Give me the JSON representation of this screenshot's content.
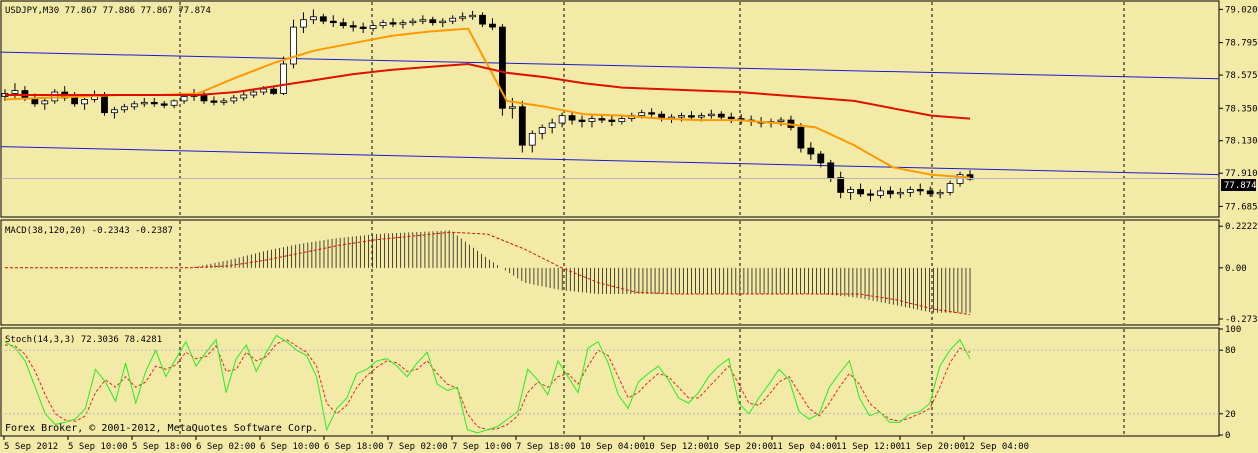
{
  "chart_data": [
    {
      "panel": "main",
      "type": "candlestick",
      "title": "USDJPY,M30  77.867 77.886 77.867 77.874",
      "price_levels": [
        "79.020",
        "78.795",
        "78.575",
        "78.350",
        "78.130",
        "77.910",
        "77.685"
      ],
      "ylim": [
        77.62,
        79.07
      ],
      "current_price_label": "77.874",
      "ohlc": [
        [
          78.43,
          78.48,
          78.4,
          78.45
        ],
        [
          78.45,
          78.52,
          78.42,
          78.47
        ],
        [
          78.47,
          78.5,
          78.4,
          78.42
        ],
        [
          78.42,
          78.45,
          78.36,
          78.38
        ],
        [
          78.38,
          78.42,
          78.34,
          78.4
        ],
        [
          78.4,
          78.48,
          78.38,
          78.46
        ],
        [
          78.46,
          78.5,
          78.4,
          78.42
        ],
        [
          78.42,
          78.46,
          78.36,
          78.38
        ],
        [
          78.38,
          78.42,
          78.34,
          78.41
        ],
        [
          78.41,
          78.47,
          78.39,
          78.44
        ],
        [
          78.44,
          78.46,
          78.3,
          78.32
        ],
        [
          78.32,
          78.36,
          78.28,
          78.34
        ],
        [
          78.34,
          78.38,
          78.32,
          78.36
        ],
        [
          78.36,
          78.4,
          78.34,
          78.38
        ],
        [
          78.38,
          78.42,
          78.36,
          78.39
        ],
        [
          78.39,
          78.42,
          78.36,
          78.38
        ],
        [
          78.38,
          78.4,
          78.35,
          78.37
        ],
        [
          78.37,
          78.41,
          78.35,
          78.4
        ],
        [
          78.4,
          78.45,
          78.38,
          78.43
        ],
        [
          78.43,
          78.48,
          78.4,
          78.44
        ],
        [
          78.44,
          78.47,
          78.38,
          78.4
        ],
        [
          78.4,
          78.43,
          78.37,
          78.39
        ],
        [
          78.39,
          78.42,
          78.37,
          78.4
        ],
        [
          78.4,
          78.44,
          78.38,
          78.42
        ],
        [
          78.42,
          78.46,
          78.4,
          78.44
        ],
        [
          78.44,
          78.48,
          78.42,
          78.46
        ],
        [
          78.46,
          78.5,
          78.44,
          78.48
        ],
        [
          78.48,
          78.5,
          78.44,
          78.45
        ],
        [
          78.45,
          78.7,
          78.44,
          78.65
        ],
        [
          78.65,
          78.95,
          78.62,
          78.9
        ],
        [
          78.9,
          79.0,
          78.86,
          78.95
        ],
        [
          78.95,
          79.02,
          78.92,
          78.97
        ],
        [
          78.97,
          78.99,
          78.92,
          78.94
        ],
        [
          78.94,
          78.98,
          78.9,
          78.93
        ],
        [
          78.93,
          78.96,
          78.89,
          78.91
        ],
        [
          78.91,
          78.94,
          78.87,
          78.9
        ],
        [
          78.9,
          78.93,
          78.86,
          78.89
        ],
        [
          78.89,
          78.93,
          78.87,
          78.91
        ],
        [
          78.91,
          78.95,
          78.89,
          78.93
        ],
        [
          78.93,
          78.96,
          78.9,
          78.92
        ],
        [
          78.92,
          78.95,
          78.89,
          78.93
        ],
        [
          78.93,
          78.96,
          78.91,
          78.94
        ],
        [
          78.94,
          78.98,
          78.92,
          78.95
        ],
        [
          78.95,
          78.97,
          78.91,
          78.93
        ],
        [
          78.93,
          78.96,
          78.9,
          78.94
        ],
        [
          78.94,
          78.98,
          78.92,
          78.96
        ],
        [
          78.96,
          79.0,
          78.94,
          78.97
        ],
        [
          78.97,
          79.01,
          78.95,
          78.98
        ],
        [
          78.98,
          79.0,
          78.9,
          78.92
        ],
        [
          78.92,
          78.96,
          78.88,
          78.9
        ],
        [
          78.9,
          78.92,
          78.3,
          78.35
        ],
        [
          78.35,
          78.42,
          78.28,
          78.36
        ],
        [
          78.36,
          78.4,
          78.05,
          78.1
        ],
        [
          78.1,
          78.2,
          78.05,
          78.18
        ],
        [
          78.18,
          78.24,
          78.14,
          78.22
        ],
        [
          78.22,
          78.28,
          78.18,
          78.25
        ],
        [
          78.25,
          78.32,
          78.22,
          78.3
        ],
        [
          78.3,
          78.33,
          78.24,
          78.27
        ],
        [
          78.27,
          78.3,
          78.22,
          78.26
        ],
        [
          78.26,
          78.3,
          78.22,
          78.28
        ],
        [
          78.28,
          78.31,
          78.25,
          78.27
        ],
        [
          78.27,
          78.3,
          78.23,
          78.26
        ],
        [
          78.26,
          78.3,
          78.24,
          78.28
        ],
        [
          78.28,
          78.32,
          78.26,
          78.3
        ],
        [
          78.3,
          78.34,
          78.28,
          78.32
        ],
        [
          78.32,
          78.35,
          78.28,
          78.31
        ],
        [
          78.31,
          78.33,
          78.26,
          78.28
        ],
        [
          78.28,
          78.31,
          78.25,
          78.29
        ],
        [
          78.29,
          78.32,
          78.26,
          78.3
        ],
        [
          78.3,
          78.33,
          78.27,
          78.29
        ],
        [
          78.29,
          78.32,
          78.26,
          78.3
        ],
        [
          78.3,
          78.34,
          78.28,
          78.31
        ],
        [
          78.31,
          78.33,
          78.27,
          78.29
        ],
        [
          78.29,
          78.32,
          78.25,
          78.28
        ],
        [
          78.28,
          78.31,
          78.24,
          78.27
        ],
        [
          78.27,
          78.3,
          78.23,
          78.26
        ],
        [
          78.26,
          78.29,
          78.22,
          78.25
        ],
        [
          78.25,
          78.28,
          78.22,
          78.26
        ],
        [
          78.26,
          78.29,
          78.23,
          78.27
        ],
        [
          78.27,
          78.3,
          78.2,
          78.22
        ],
        [
          78.22,
          78.25,
          78.05,
          78.08
        ],
        [
          78.08,
          78.12,
          78.0,
          78.04
        ],
        [
          78.04,
          78.06,
          77.95,
          77.98
        ],
        [
          77.98,
          78.0,
          77.85,
          77.88
        ],
        [
          77.88,
          77.92,
          77.74,
          77.78
        ],
        [
          77.78,
          77.82,
          77.73,
          77.8
        ],
        [
          77.8,
          77.84,
          77.75,
          77.77
        ],
        [
          77.77,
          77.8,
          77.72,
          77.76
        ],
        [
          77.76,
          77.82,
          77.74,
          77.79
        ],
        [
          77.79,
          77.82,
          77.74,
          77.77
        ],
        [
          77.77,
          77.81,
          77.74,
          77.78
        ],
        [
          77.78,
          77.82,
          77.75,
          77.8
        ],
        [
          77.8,
          77.84,
          77.76,
          77.79
        ],
        [
          77.79,
          77.82,
          77.75,
          77.77
        ],
        [
          77.77,
          77.8,
          77.74,
          77.78
        ],
        [
          77.78,
          77.86,
          77.76,
          77.84
        ],
        [
          77.84,
          77.92,
          77.82,
          77.9
        ],
        [
          77.9,
          77.93,
          77.86,
          77.87
        ]
      ],
      "moving_averages": [
        {
          "color": "#ff9900",
          "values": [
            78.41,
            78.42,
            78.43,
            78.44,
            78.44,
            78.45,
            78.56,
            78.66,
            78.74,
            78.79,
            78.84,
            78.87,
            78.89,
            78.4,
            78.36,
            78.31,
            78.3,
            78.28,
            78.27,
            78.27,
            78.25,
            78.22,
            78.1,
            77.95,
            77.9,
            77.88
          ]
        },
        {
          "color": "#dd1100",
          "values": [
            78.44,
            78.44,
            78.44,
            78.44,
            78.44,
            78.44,
            78.46,
            78.5,
            78.54,
            78.58,
            78.61,
            78.63,
            78.65,
            78.59,
            78.56,
            78.52,
            78.49,
            78.48,
            78.47,
            78.46,
            78.44,
            78.42,
            78.4,
            78.35,
            78.3,
            78.28
          ]
        }
      ],
      "trend_lines": [
        {
          "color": "#1a1ad0",
          "from_price": 78.73,
          "to_price": 78.55
        },
        {
          "color": "#1a1ad0",
          "from_price": 78.09,
          "to_price": 77.9
        }
      ]
    },
    {
      "panel": "macd",
      "type": "histogram",
      "title": "MACD(38,120,20) -0.2343 -0.2387",
      "levels": [
        "0.2222",
        "0.00",
        "-0.2732"
      ],
      "ylim": [
        -0.3,
        0.25
      ],
      "histogram": [
        0.0,
        0.0,
        0.0,
        0.0,
        0.0,
        0.0,
        0.04,
        0.09,
        0.13,
        0.16,
        0.18,
        0.19,
        0.2,
        0.05,
        -0.08,
        -0.12,
        -0.14,
        -0.14,
        -0.14,
        -0.14,
        -0.14,
        -0.14,
        -0.14,
        -0.16,
        -0.2,
        -0.24,
        -0.24
      ],
      "signal": [
        0.0,
        0.0,
        0.0,
        0.0,
        0.0,
        0.0,
        0.01,
        0.04,
        0.08,
        0.12,
        0.15,
        0.17,
        0.19,
        0.18,
        0.1,
        0.0,
        -0.08,
        -0.13,
        -0.14,
        -0.14,
        -0.14,
        -0.14,
        -0.14,
        -0.14,
        -0.17,
        -0.22,
        -0.25
      ]
    },
    {
      "panel": "stochastic",
      "type": "line",
      "title": "Stoch(14,3,3) 72.3036 78.4281",
      "levels": [
        "100",
        "80",
        "20",
        "0"
      ],
      "ylim": [
        0,
        100
      ],
      "main_line": {
        "color": "#22ee22",
        "values": [
          88,
          82,
          70,
          45,
          20,
          10,
          12,
          15,
          25,
          62,
          50,
          32,
          68,
          30,
          60,
          80,
          55,
          72,
          88,
          65,
          78,
          90,
          40,
          72,
          85,
          60,
          78,
          94,
          88,
          80,
          75,
          55,
          5,
          25,
          35,
          58,
          62,
          70,
          72,
          65,
          55,
          68,
          78,
          48,
          42,
          45,
          5,
          2,
          5,
          8,
          15,
          22,
          62,
          52,
          38,
          70,
          55,
          40,
          82,
          88,
          68,
          38,
          25,
          50,
          58,
          65,
          52,
          35,
          30,
          40,
          55,
          65,
          72,
          30,
          20,
          35,
          48,
          62,
          52,
          22,
          15,
          20,
          45,
          58,
          70,
          35,
          18,
          22,
          12,
          12,
          20,
          22,
          30,
          65,
          80,
          90,
          72
        ]
      },
      "signal_line": {
        "color": "#ee2222",
        "values": [
          85,
          84,
          76,
          60,
          38,
          20,
          14,
          13,
          18,
          40,
          52,
          45,
          55,
          45,
          50,
          65,
          62,
          66,
          78,
          72,
          74,
          84,
          60,
          62,
          78,
          70,
          74,
          86,
          90,
          84,
          78,
          65,
          30,
          20,
          28,
          45,
          56,
          64,
          70,
          68,
          60,
          62,
          70,
          58,
          48,
          44,
          20,
          8,
          5,
          6,
          10,
          18,
          40,
          50,
          45,
          55,
          58,
          48,
          65,
          80,
          75,
          55,
          35,
          40,
          50,
          58,
          55,
          45,
          35,
          35,
          45,
          55,
          65,
          48,
          30,
          28,
          38,
          50,
          55,
          40,
          25,
          18,
          30,
          45,
          58,
          48,
          30,
          22,
          15,
          13,
          16,
          20,
          25,
          45,
          68,
          82,
          78
        ]
      }
    }
  ],
  "time_labels": [
    "5 Sep 2012",
    "5 Sep 10:00",
    "5 Sep 18:00",
    "6 Sep 02:00",
    "6 Sep 10:00",
    "6 Sep 18:00",
    "7 Sep 02:00",
    "7 Sep 10:00",
    "7 Sep 18:00",
    "10 Sep 04:00",
    "10 Sep 12:00",
    "10 Sep 20:00",
    "11 Sep 04:00",
    "11 Sep 12:00",
    "11 Sep 20:00",
    "12 Sep 04:00"
  ],
  "copyright": "Forex Broker, © 2001-2012, MetaQuotes Software Corp.",
  "colors": {
    "background": "#f3eaa8",
    "grid": "#000000",
    "bull": "#ffffff",
    "bear": "#000000"
  }
}
